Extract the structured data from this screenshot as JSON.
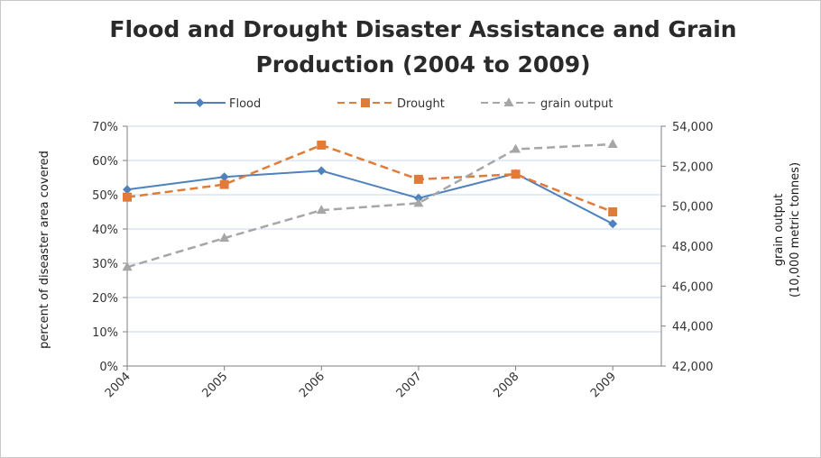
{
  "chart_data": {
    "type": "line",
    "title_line1": "Flood and Drought Disaster Assistance and Grain",
    "title_line2": "Production (2004 to 2009)",
    "categories": [
      "2004",
      "2005",
      "2006",
      "2007",
      "2008",
      "2009"
    ],
    "ylabel_left": "percent of diseaster area covered",
    "ylabel_right_line1": "grain output",
    "ylabel_right_line2": "(10,000 metric tonnes)",
    "ylim_left": [
      0,
      70
    ],
    "yticks_left": [
      "0%",
      "10%",
      "20%",
      "30%",
      "40%",
      "50%",
      "60%",
      "70%"
    ],
    "ylim_right": [
      42000,
      54000
    ],
    "yticks_right": [
      "42,000",
      "44,000",
      "46,000",
      "48,000",
      "50,000",
      "52,000",
      "54,000"
    ],
    "legend_position": "top",
    "grid": true,
    "series": [
      {
        "name": "Flood",
        "axis": "left",
        "marker": "diamond",
        "color": "#4f81bd",
        "dash": "solid",
        "values": [
          51.5,
          55.2,
          57.0,
          49.0,
          56.2,
          41.5
        ]
      },
      {
        "name": "Drought",
        "axis": "left",
        "marker": "square",
        "color": "#e07b39",
        "dash": "dashed",
        "values": [
          49.3,
          53.0,
          64.5,
          54.5,
          56.0,
          45.0
        ]
      },
      {
        "name": "grain output",
        "axis": "right",
        "marker": "triangle",
        "color": "#a6a6a6",
        "dash": "dashed",
        "values": [
          46950,
          48400,
          49800,
          50150,
          52850,
          53100
        ]
      }
    ]
  }
}
